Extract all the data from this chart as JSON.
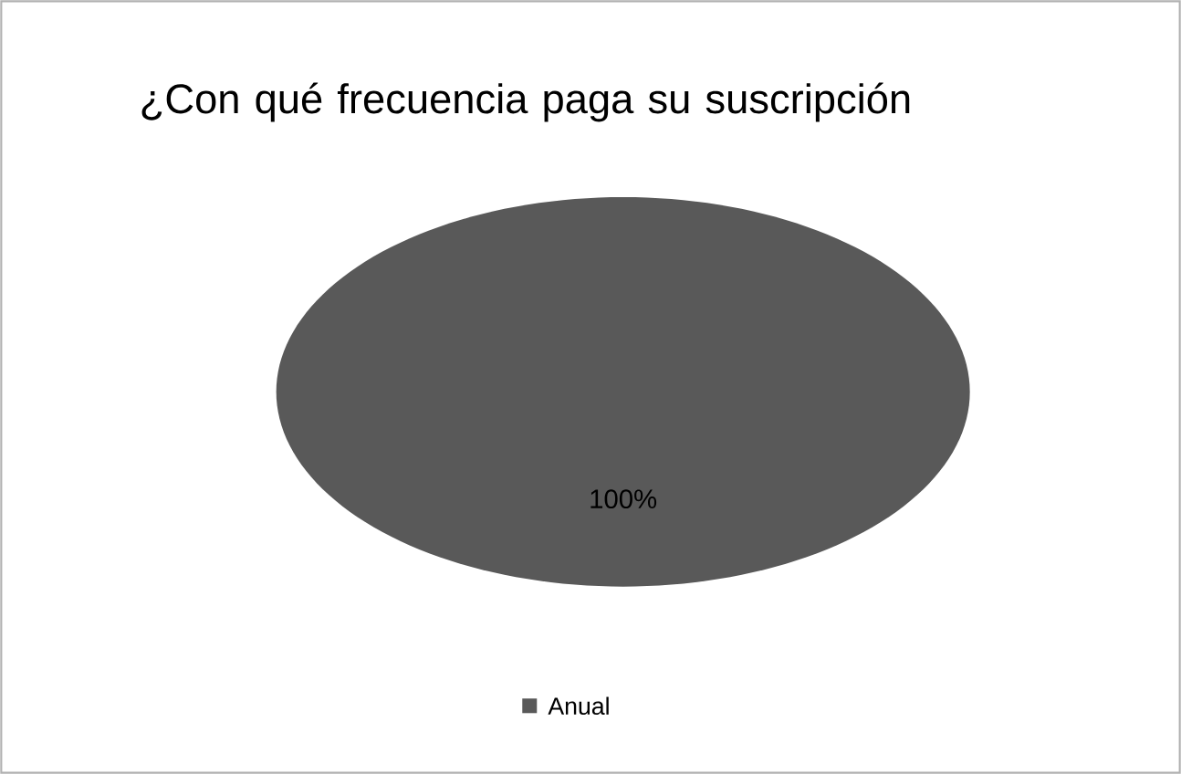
{
  "chart_data": {
    "type": "pie",
    "title": "¿Con qué frecuencia paga su suscripción",
    "categories": [
      "Anual"
    ],
    "values": [
      100
    ],
    "colors": [
      "#595959"
    ],
    "value_labels": [
      "100%"
    ],
    "legend": "bottom"
  }
}
